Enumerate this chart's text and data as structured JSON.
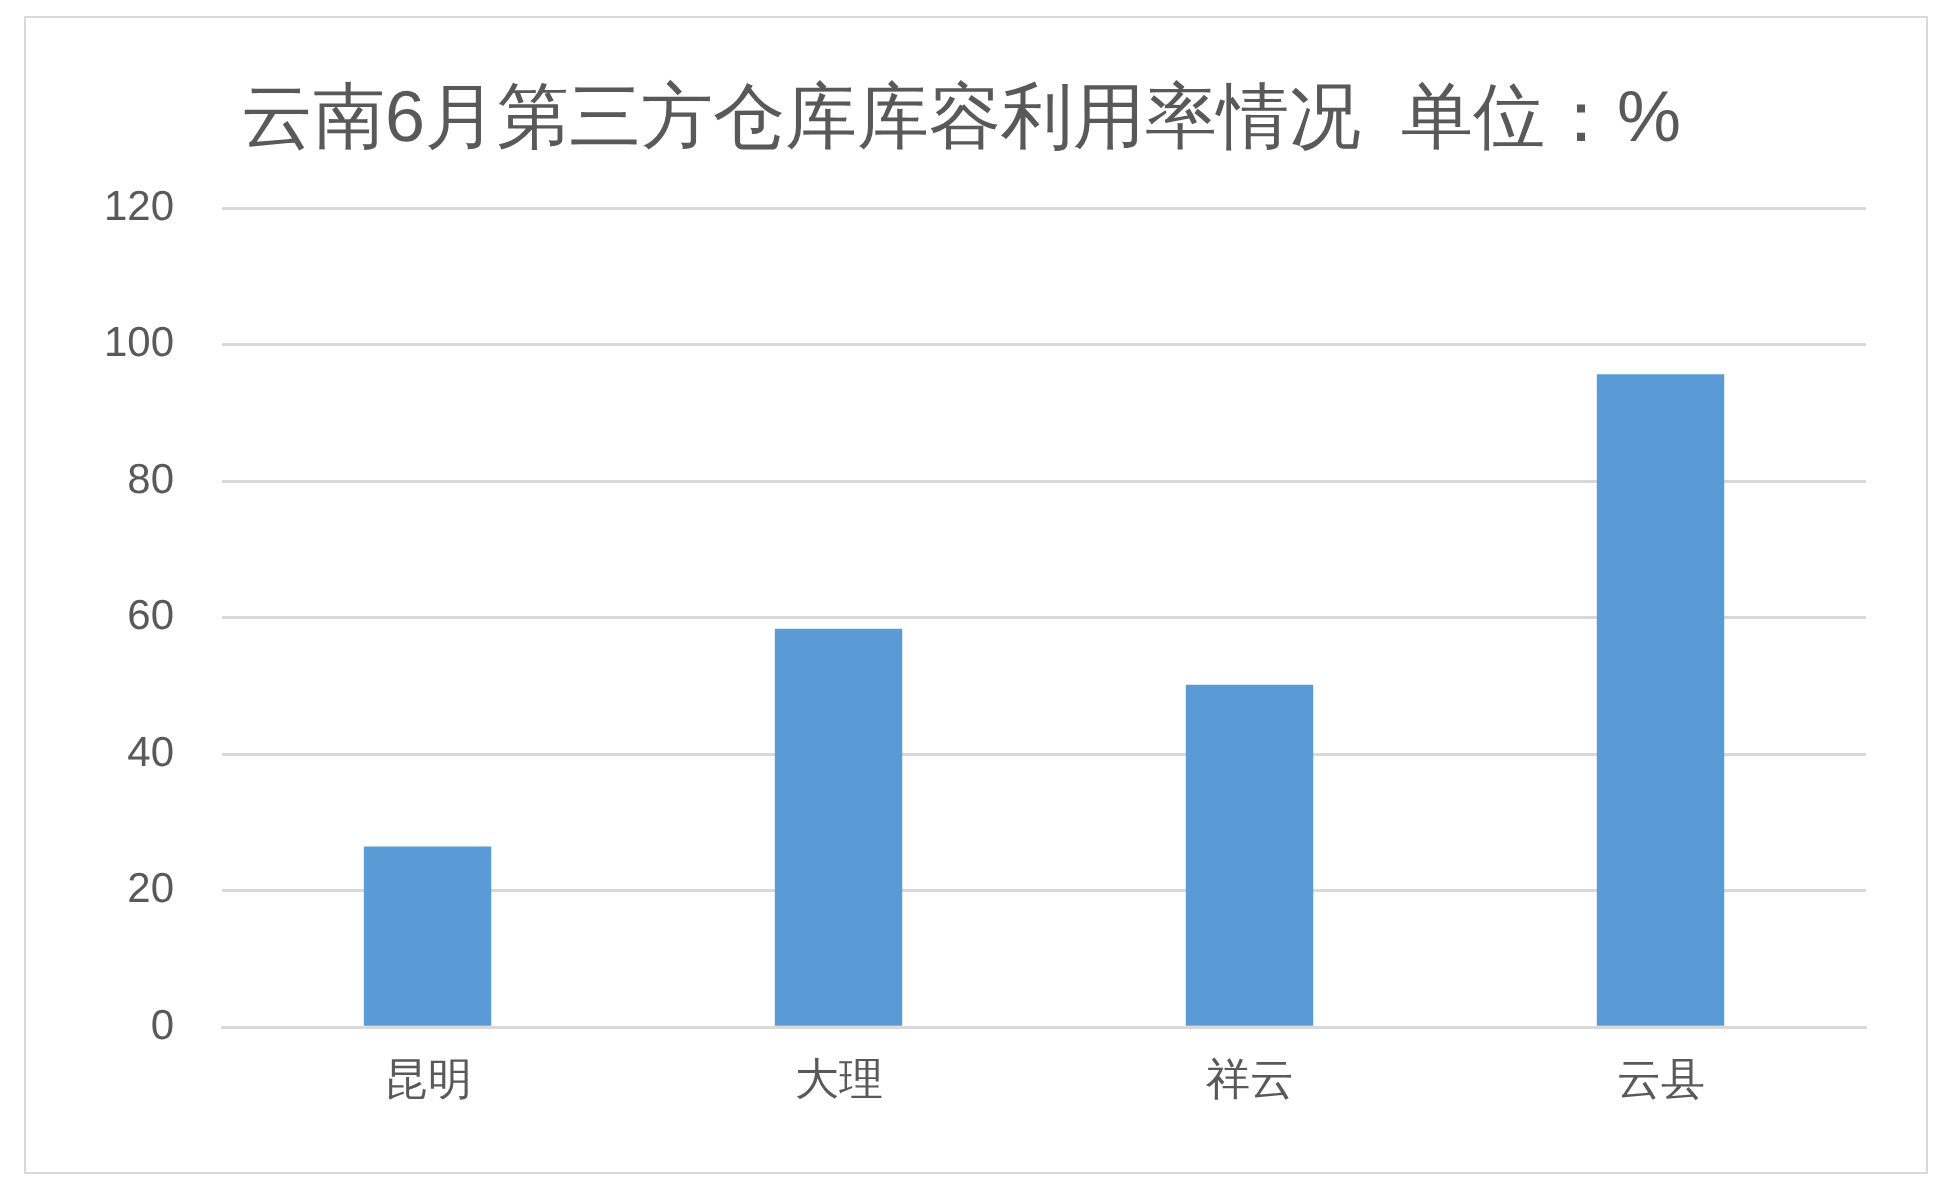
{
  "chart_data": {
    "type": "bar",
    "title": "云南6月第三方仓库库容利用率情况  单位：%",
    "categories": [
      "昆明",
      "大理",
      "祥云",
      "云县"
    ],
    "values": [
      26.5,
      58.4,
      50.2,
      95.7
    ],
    "color": "#5b9bd5",
    "ylim": [
      0,
      120
    ],
    "yticks": [
      0,
      20,
      40,
      60,
      80,
      100,
      120
    ],
    "grid": "y"
  }
}
